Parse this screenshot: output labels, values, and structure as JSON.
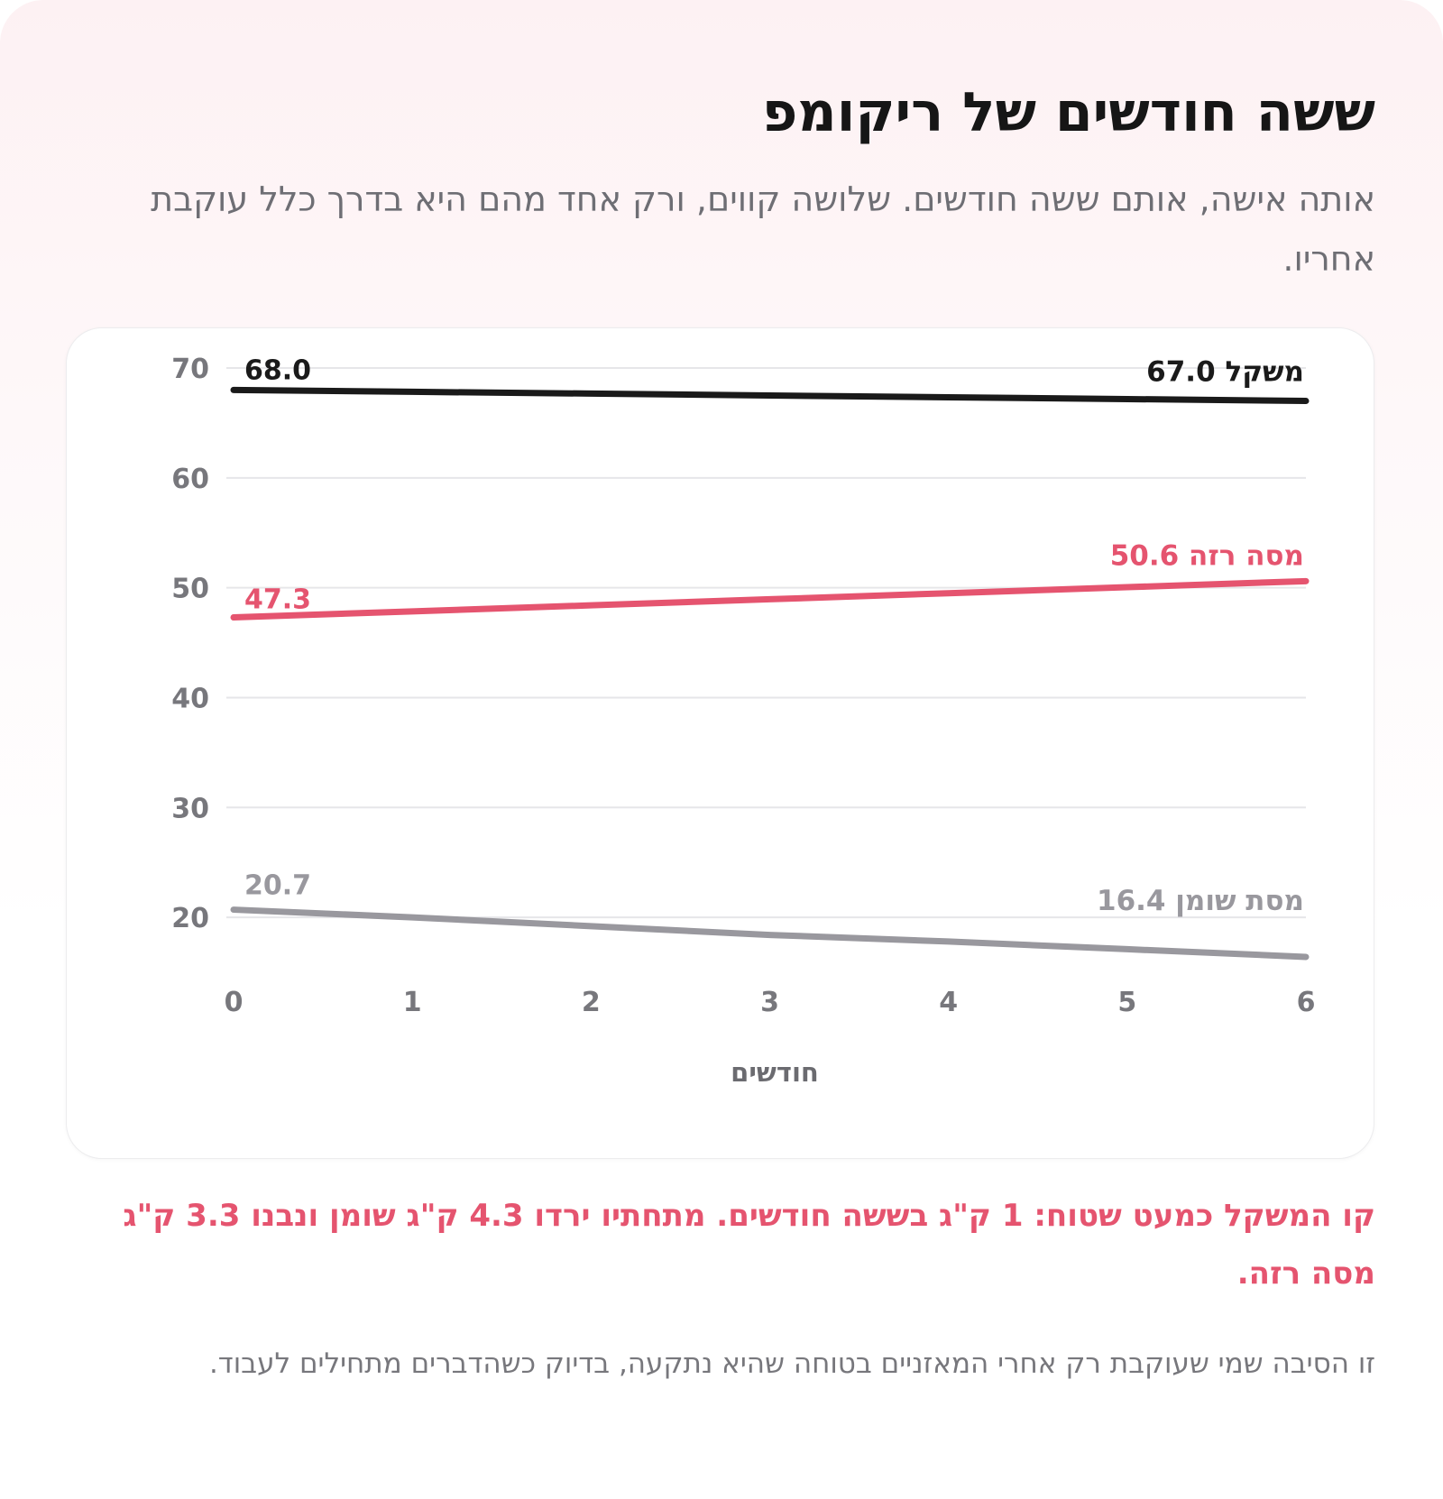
{
  "header": {
    "title": "ששה חודשים של ריקומפ",
    "subtitle": "אותה אישה, אותם ששה חודשים. שלושה קווים, ורק אחד מהם היא בדרך כלל עוקבת אחריו."
  },
  "chart_data": {
    "type": "line",
    "x": [
      0,
      1,
      2,
      3,
      4,
      5,
      6
    ],
    "xlim": [
      0,
      6
    ],
    "ylim": [
      15,
      70
    ],
    "y_ticks": [
      70,
      60,
      50,
      40,
      30,
      20
    ],
    "x_ticks": [
      0,
      1,
      2,
      3,
      4,
      5,
      6
    ],
    "xlabel": "חודשים",
    "ylabel": "",
    "grid": true,
    "series": [
      {
        "name": "משקל",
        "color": "#1a1a1a",
        "values": [
          68.0,
          67.83,
          67.67,
          67.5,
          67.33,
          67.17,
          67.0
        ],
        "start_label": "68.0",
        "end_label": "משקל 67.0"
      },
      {
        "name": "מסה רזה",
        "color": "#e5546f",
        "values": [
          47.3,
          47.85,
          48.4,
          48.95,
          49.5,
          50.05,
          50.6
        ],
        "start_label": "47.3",
        "end_label": "מסה רזה 50.6"
      },
      {
        "name": "מסת שומן",
        "color": "#99989e",
        "values": [
          20.7,
          20.0,
          19.2,
          18.4,
          17.8,
          17.1,
          16.4
        ],
        "start_label": "20.7",
        "end_label": "מסת שומן 16.4"
      }
    ]
  },
  "footer": {
    "highlight": "קו המשקל כמעט שטוח: 1 ק\"ג בששה חודשים. מתחתיו ירדו 4.3 ק\"ג שומן ונבנו 3.3 ק\"ג מסה רזה.",
    "note": "זו הסיבה שמי שעוקבת רק אחרי המאזניים בטוחה שהיא נתקעה, בדיוק כשהדברים מתחילים לעבוד."
  }
}
